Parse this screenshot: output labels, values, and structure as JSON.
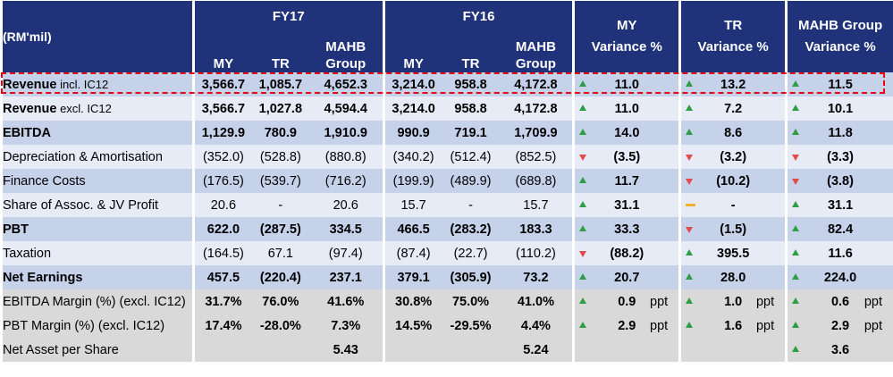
{
  "header": {
    "unit_label": "(RM'mil)",
    "fy17": "FY17",
    "fy16": "FY16",
    "sub_my": "MY",
    "sub_tr": "TR",
    "sub_group": "MAHB Group",
    "my_variance": "MY Variance %",
    "tr_variance": "TR Variance %",
    "group_variance": "MAHB Group Variance %"
  },
  "rows": [
    {
      "label_main": "Revenue",
      "label_tail": " incl. IC12",
      "style": "shaded",
      "bold": true,
      "indent": false,
      "fy17": [
        "3,566.7",
        "1,085.7",
        "4,652.3"
      ],
      "fy16": [
        "3,214.0",
        "958.8",
        "4,172.8"
      ],
      "var_my": {
        "v": "11.0",
        "icon": "up"
      },
      "var_tr": {
        "v": "13.2",
        "icon": "up"
      },
      "var_group": {
        "v": "11.5",
        "icon": "up"
      }
    },
    {
      "label_main": "Revenue",
      "label_tail": " excl. IC12",
      "style": "plain",
      "bold": true,
      "indent": false,
      "fy17": [
        "3,566.7",
        "1,027.8",
        "4,594.4"
      ],
      "fy16": [
        "3,214.0",
        "958.8",
        "4,172.8"
      ],
      "var_my": {
        "v": "11.0",
        "icon": "up"
      },
      "var_tr": {
        "v": "7.2",
        "icon": "up"
      },
      "var_group": {
        "v": "10.1",
        "icon": "up"
      }
    },
    {
      "label_main": "EBITDA",
      "label_tail": "",
      "style": "shaded",
      "bold": true,
      "indent": false,
      "fy17": [
        "1,129.9",
        "780.9",
        "1,910.9"
      ],
      "fy16": [
        "990.9",
        "719.1",
        "1,709.9"
      ],
      "var_my": {
        "v": "14.0",
        "icon": "up"
      },
      "var_tr": {
        "v": "8.6",
        "icon": "up"
      },
      "var_group": {
        "v": "11.8",
        "icon": "up"
      }
    },
    {
      "label_main": "Depreciation & Amortisation",
      "label_tail": "",
      "style": "plain",
      "bold": false,
      "indent": true,
      "fy17": [
        "(352.0)",
        "(528.8)",
        "(880.8)"
      ],
      "fy16": [
        "(340.2)",
        "(512.4)",
        "(852.5)"
      ],
      "var_my": {
        "v": "(3.5)",
        "icon": "down"
      },
      "var_tr": {
        "v": "(3.2)",
        "icon": "down"
      },
      "var_group": {
        "v": "(3.3)",
        "icon": "down"
      }
    },
    {
      "label_main": "Finance Costs",
      "label_tail": "",
      "style": "shaded",
      "bold": false,
      "indent": true,
      "fy17": [
        "(176.5)",
        "(539.7)",
        "(716.2)"
      ],
      "fy16": [
        "(199.9)",
        "(489.9)",
        "(689.8)"
      ],
      "var_my": {
        "v": "11.7",
        "icon": "up"
      },
      "var_tr": {
        "v": "(10.2)",
        "icon": "down"
      },
      "var_group": {
        "v": "(3.8)",
        "icon": "down"
      }
    },
    {
      "label_main": "Share of Assoc. & JV Profit",
      "label_tail": "",
      "style": "plain",
      "bold": false,
      "indent": true,
      "fy17": [
        "20.6",
        "-",
        "20.6"
      ],
      "fy16": [
        "15.7",
        "-",
        "15.7"
      ],
      "var_my": {
        "v": "31.1",
        "icon": "up"
      },
      "var_tr": {
        "v": "-",
        "icon": "flat"
      },
      "var_group": {
        "v": "31.1",
        "icon": "up"
      }
    },
    {
      "label_main": "PBT",
      "label_tail": "",
      "style": "shaded",
      "bold": true,
      "indent": false,
      "fy17": [
        "622.0",
        "(287.5)",
        "334.5"
      ],
      "fy16": [
        "466.5",
        "(283.2)",
        "183.3"
      ],
      "var_my": {
        "v": "33.3",
        "icon": "up"
      },
      "var_tr": {
        "v": "(1.5)",
        "icon": "down"
      },
      "var_group": {
        "v": "82.4",
        "icon": "up"
      }
    },
    {
      "label_main": "Taxation",
      "label_tail": "",
      "style": "plain",
      "bold": false,
      "indent": true,
      "fy17": [
        "(164.5)",
        "67.1",
        "(97.4)"
      ],
      "fy16": [
        "(87.4)",
        "(22.7)",
        "(110.2)"
      ],
      "var_my": {
        "v": "(88.2)",
        "icon": "down"
      },
      "var_tr": {
        "v": "395.5",
        "icon": "up"
      },
      "var_group": {
        "v": "11.6",
        "icon": "up"
      }
    },
    {
      "label_main": "Net Earnings",
      "label_tail": "",
      "style": "shaded",
      "bold": true,
      "indent": false,
      "fy17": [
        "457.5",
        "(220.4)",
        "237.1"
      ],
      "fy16": [
        "379.1",
        "(305.9)",
        "73.2"
      ],
      "var_my": {
        "v": "20.7",
        "icon": "up"
      },
      "var_tr": {
        "v": "28.0",
        "icon": "up"
      },
      "var_group": {
        "v": "224.0",
        "icon": "up"
      }
    },
    {
      "label_main": "EBITDA Margin (%) (excl. IC12)",
      "label_tail": "",
      "style": "grey",
      "bold": false,
      "indent": false,
      "fy17": [
        "31.7%",
        "76.0%",
        "41.6%"
      ],
      "fy16": [
        "30.8%",
        "75.0%",
        "41.0%"
      ],
      "var_my": {
        "v": "0.9",
        "icon": "up",
        "unit": "ppt"
      },
      "var_tr": {
        "v": "1.0",
        "icon": "up",
        "unit": "ppt"
      },
      "var_group": {
        "v": "0.6",
        "icon": "up",
        "unit": "ppt"
      }
    },
    {
      "label_main": "PBT Margin (%) (excl. IC12)",
      "label_tail": "",
      "style": "grey",
      "bold": false,
      "indent": false,
      "fy17": [
        "17.4%",
        "-28.0%",
        "7.3%"
      ],
      "fy16": [
        "14.5%",
        "-29.5%",
        "4.4%"
      ],
      "var_my": {
        "v": "2.9",
        "icon": "up",
        "unit": "ppt"
      },
      "var_tr": {
        "v": "1.6",
        "icon": "up",
        "unit": "ppt"
      },
      "var_group": {
        "v": "2.9",
        "icon": "up",
        "unit": "ppt"
      }
    },
    {
      "label_main": "Net Asset per Share",
      "label_tail": "",
      "style": "grey",
      "bold": false,
      "indent": false,
      "fy17": [
        "",
        "",
        "5.43"
      ],
      "fy16": [
        "",
        "",
        "5.24"
      ],
      "var_my": {
        "v": "",
        "icon": ""
      },
      "var_tr": {
        "v": "",
        "icon": ""
      },
      "var_group": {
        "v": "3.6",
        "icon": "up"
      }
    }
  ],
  "colors": {
    "header": "#20327a",
    "shaded": "#c6d1ea",
    "plain": "#e6ebf6",
    "grey": "#d9d9d9",
    "up": "#2e9e45",
    "down": "#e34a4a",
    "flat": "#f0b12a",
    "highlight": "#e30613"
  }
}
